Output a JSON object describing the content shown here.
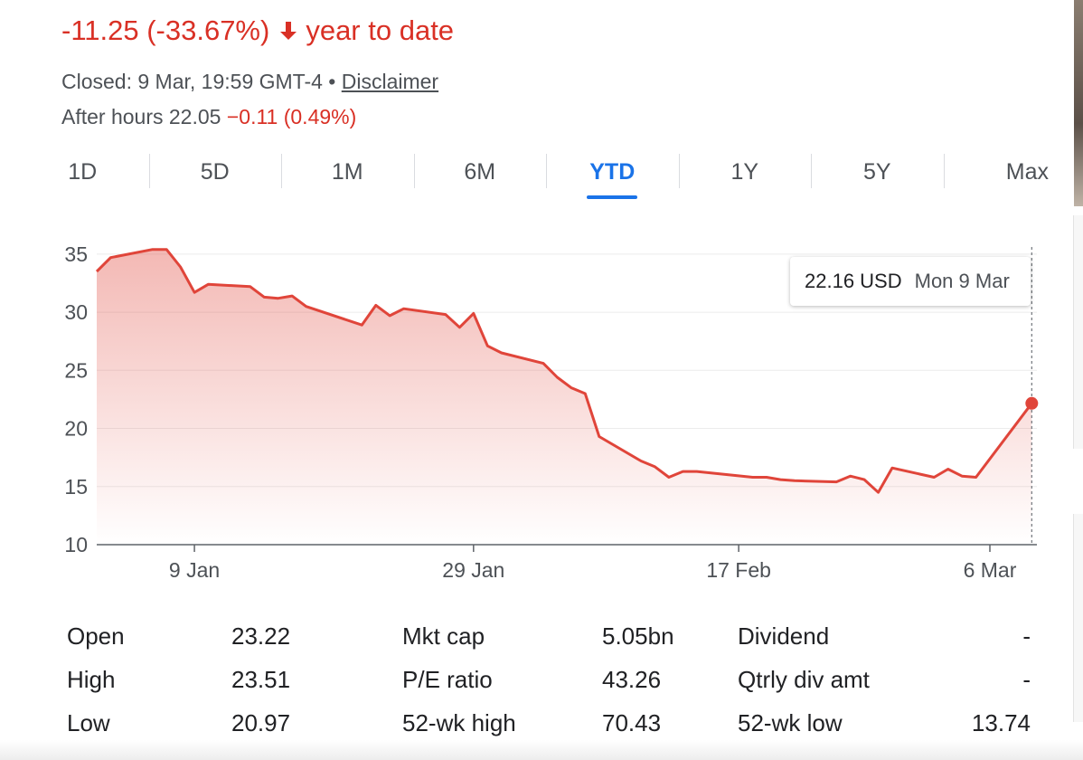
{
  "header": {
    "change_text": "-11.25 (-33.67%)",
    "period_text": "year to date",
    "closed_text": "Closed: 9 Mar, 19:59 GMT-4 •",
    "disclaimer_label": "Disclaimer",
    "after_hours_label": "After hours 22.05",
    "after_hours_change": "−0.11 (0.49%)",
    "negative_color": "#d93025",
    "arrow_icon": "arrow-down-icon"
  },
  "tabs": [
    {
      "label": "1D",
      "active": false
    },
    {
      "label": "5D",
      "active": false
    },
    {
      "label": "1M",
      "active": false
    },
    {
      "label": "6M",
      "active": false
    },
    {
      "label": "YTD",
      "active": true
    },
    {
      "label": "1Y",
      "active": false
    },
    {
      "label": "5Y",
      "active": false
    },
    {
      "label": "Max",
      "active": false
    }
  ],
  "tooltip": {
    "price": "22.16 USD",
    "date": "Mon 9 Mar"
  },
  "chart_data": {
    "type": "area",
    "ylim": [
      10,
      36
    ],
    "y_ticks": [
      10,
      15,
      20,
      25,
      30,
      35
    ],
    "grid": true,
    "line_color": "#e0453a",
    "x_tick_labels": [
      "9 Jan",
      "29 Jan",
      "17 Feb",
      "6 Mar"
    ],
    "x_ticks": [
      "2020-01-09",
      "2020-01-29",
      "2020-02-17",
      "2020-03-06"
    ],
    "points": [
      [
        "2020-01-02",
        33.5
      ],
      [
        "2020-01-03",
        34.7
      ],
      [
        "2020-01-06",
        35.4
      ],
      [
        "2020-01-07",
        35.4
      ],
      [
        "2020-01-08",
        33.9
      ],
      [
        "2020-01-09",
        31.7
      ],
      [
        "2020-01-10",
        32.4
      ],
      [
        "2020-01-13",
        32.2
      ],
      [
        "2020-01-14",
        31.3
      ],
      [
        "2020-01-15",
        31.2
      ],
      [
        "2020-01-16",
        31.4
      ],
      [
        "2020-01-17",
        30.5
      ],
      [
        "2020-01-21",
        28.9
      ],
      [
        "2020-01-22",
        30.6
      ],
      [
        "2020-01-23",
        29.7
      ],
      [
        "2020-01-24",
        30.3
      ],
      [
        "2020-01-27",
        29.8
      ],
      [
        "2020-01-28",
        28.7
      ],
      [
        "2020-01-29",
        29.9
      ],
      [
        "2020-01-30",
        27.1
      ],
      [
        "2020-01-31",
        26.5
      ],
      [
        "2020-02-03",
        25.6
      ],
      [
        "2020-02-04",
        24.4
      ],
      [
        "2020-02-05",
        23.5
      ],
      [
        "2020-02-06",
        23.0
      ],
      [
        "2020-02-07",
        19.3
      ],
      [
        "2020-02-10",
        17.2
      ],
      [
        "2020-02-11",
        16.7
      ],
      [
        "2020-02-12",
        15.8
      ],
      [
        "2020-02-13",
        16.3
      ],
      [
        "2020-02-14",
        16.3
      ],
      [
        "2020-02-18",
        15.8
      ],
      [
        "2020-02-19",
        15.8
      ],
      [
        "2020-02-20",
        15.6
      ],
      [
        "2020-02-21",
        15.5
      ],
      [
        "2020-02-24",
        15.4
      ],
      [
        "2020-02-25",
        15.9
      ],
      [
        "2020-02-26",
        15.6
      ],
      [
        "2020-02-27",
        14.5
      ],
      [
        "2020-02-28",
        16.6
      ],
      [
        "2020-03-02",
        15.8
      ],
      [
        "2020-03-03",
        16.5
      ],
      [
        "2020-03-04",
        15.9
      ],
      [
        "2020-03-05",
        15.8
      ],
      [
        "2020-03-09",
        22.16
      ]
    ]
  },
  "stats": [
    {
      "l1": "Open",
      "v1": "23.22",
      "l2": "Mkt cap",
      "v2": "5.05bn",
      "l3": "Dividend",
      "v3": "-"
    },
    {
      "l1": "High",
      "v1": "23.51",
      "l2": "P/E ratio",
      "v2": "43.26",
      "l3": "Qtrly div amt",
      "v3": "-"
    },
    {
      "l1": "Low",
      "v1": "20.97",
      "l2": "52-wk high",
      "v2": "70.43",
      "l3": "52-wk low",
      "v3": "13.74"
    }
  ]
}
